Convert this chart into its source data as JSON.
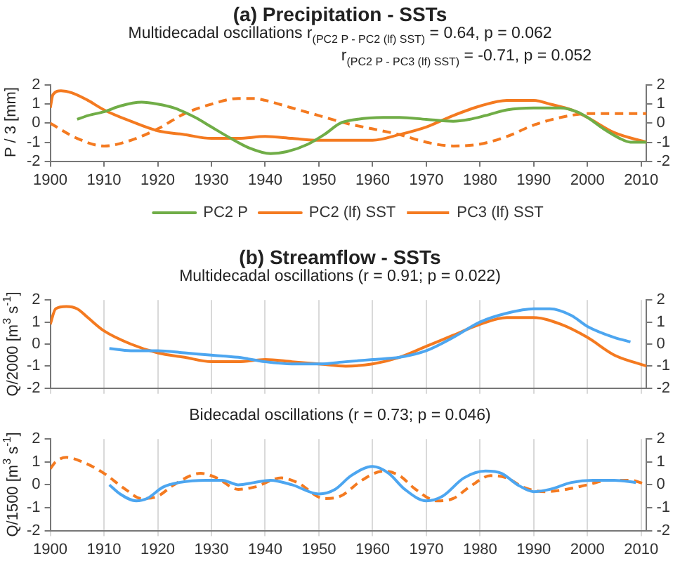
{
  "chart_data": [
    {
      "type": "line",
      "title": "(a)   Precipitation - SSTs",
      "subtitle": "Multidecadal  oscillations   r$_{(PC2 P - PC2 (lf) SST)}$ = 0.64,  p = 0.062",
      "annotations": [
        "r$_{(PC2 P - PC3 (lf) SST)}$ = -0.71, p = 0.052"
      ],
      "ylabel": "P / 3 [mm]",
      "xlim": [
        1900,
        2011
      ],
      "xticks": [
        1900,
        1910,
        1920,
        1930,
        1940,
        1950,
        1960,
        1970,
        1980,
        1990,
        2000,
        2010
      ],
      "ylim": [
        -2,
        2
      ],
      "yticks": [
        -2,
        -1,
        0,
        1,
        2
      ],
      "y2lim": [
        -2,
        2
      ],
      "y2ticks": [
        -2,
        -1,
        0,
        1,
        2
      ],
      "legend": "bottom",
      "line_style": "solid",
      "series": [
        {
          "name": "PC2 P",
          "color": "#70ad47",
          "x": [
            1905,
            1907,
            1910,
            1913,
            1917,
            1920,
            1923,
            1927,
            1930,
            1933,
            1937,
            1941,
            1944,
            1948,
            1951,
            1954,
            1957,
            1962,
            1965,
            1970,
            1975,
            1978,
            1981,
            1985,
            1990,
            1995,
            1998,
            2000,
            2003,
            2006,
            2008,
            2011
          ],
          "values": [
            0.2,
            0.4,
            0.6,
            0.9,
            1.1,
            1.0,
            0.8,
            0.3,
            -0.2,
            -0.7,
            -1.3,
            -1.6,
            -1.5,
            -1.1,
            -0.6,
            0.0,
            0.2,
            0.3,
            0.3,
            0.2,
            0.1,
            0.2,
            0.4,
            0.7,
            0.8,
            0.8,
            0.6,
            0.3,
            -0.3,
            -0.8,
            -1.0,
            -1.0
          ]
        },
        {
          "name": "PC2 (lf) SST",
          "color": "#f47a20",
          "x": [
            1900,
            1900.5,
            1902,
            1904,
            1907,
            1910,
            1915,
            1920,
            1925,
            1930,
            1935,
            1940,
            1945,
            1950,
            1955,
            1960,
            1965,
            1970,
            1975,
            1980,
            1985,
            1990,
            1993,
            1997,
            2000,
            2005,
            2011
          ],
          "values": [
            0.8,
            1.5,
            1.7,
            1.6,
            1.2,
            0.7,
            0.1,
            -0.4,
            -0.6,
            -0.8,
            -0.8,
            -0.7,
            -0.8,
            -0.9,
            -0.9,
            -0.9,
            -0.6,
            -0.2,
            0.4,
            0.9,
            1.2,
            1.2,
            1.0,
            0.7,
            0.3,
            -0.5,
            -1.0
          ]
        },
        {
          "name": "PC3 (lf) SST",
          "color": "#f47a20",
          "line_style": "dashed",
          "x": [
            1900,
            1905,
            1910,
            1915,
            1920,
            1925,
            1930,
            1935,
            1938,
            1940,
            1945,
            1950,
            1955,
            1960,
            1965,
            1970,
            1975,
            1980,
            1985,
            1990,
            1995,
            2000,
            2005,
            2011
          ],
          "values": [
            0.0,
            -0.8,
            -1.2,
            -0.9,
            -0.3,
            0.5,
            1.0,
            1.3,
            1.3,
            1.2,
            0.8,
            0.4,
            0.0,
            -0.3,
            -0.6,
            -1.0,
            -1.2,
            -1.1,
            -0.7,
            -0.1,
            0.3,
            0.5,
            0.5,
            0.5
          ]
        }
      ]
    },
    {
      "type": "line",
      "title": "(b)    Streamflow - SSTs",
      "subtitle": "Multidecadal oscillations  (r = 0.91; p = 0.022)",
      "ylabel": "Q/2000  [m$^{3}$ s$^{-1}$]",
      "xlim": [
        1900,
        2011
      ],
      "xticks": [
        1900,
        1910,
        1920,
        1930,
        1940,
        1950,
        1960,
        1970,
        1980,
        1990,
        2000,
        2010
      ],
      "ylim": [
        -2,
        2
      ],
      "yticks": [
        -2,
        -1,
        0,
        1,
        2
      ],
      "y2lim": [
        -2,
        2
      ],
      "y2ticks": [
        -2,
        -1,
        0,
        1,
        2
      ],
      "grid": "x",
      "tick_labels": "y",
      "line_style": "solid",
      "series": [
        {
          "color": "#4da6f0",
          "x": [
            1911,
            1915,
            1920,
            1925,
            1930,
            1935,
            1940,
            1945,
            1950,
            1955,
            1960,
            1965,
            1970,
            1975,
            1980,
            1985,
            1990,
            1993,
            1997,
            2000,
            2005,
            2008
          ],
          "values": [
            -0.2,
            -0.3,
            -0.3,
            -0.4,
            -0.5,
            -0.6,
            -0.8,
            -0.9,
            -0.9,
            -0.8,
            -0.7,
            -0.6,
            -0.3,
            0.3,
            1.0,
            1.4,
            1.6,
            1.6,
            1.3,
            0.8,
            0.3,
            0.1
          ]
        },
        {
          "color": "#f47a20",
          "x": [
            1900,
            1901,
            1903,
            1905,
            1907,
            1910,
            1915,
            1920,
            1925,
            1930,
            1935,
            1940,
            1945,
            1950,
            1955,
            1960,
            1965,
            1970,
            1975,
            1980,
            1985,
            1990,
            1995,
            2000,
            2005,
            2011
          ],
          "values": [
            0.9,
            1.6,
            1.7,
            1.6,
            1.2,
            0.6,
            0.0,
            -0.4,
            -0.6,
            -0.8,
            -0.8,
            -0.7,
            -0.8,
            -0.9,
            -1.0,
            -0.9,
            -0.6,
            -0.1,
            0.4,
            0.9,
            1.2,
            1.2,
            0.9,
            0.3,
            -0.5,
            -1.0
          ]
        }
      ]
    },
    {
      "type": "line",
      "title": "Bidecadal oscillations  (r = 0.73; p = 0.046)",
      "ylabel": "Q/1500  [m$^{3}$ s$^{-1}$]",
      "xlim": [
        1900,
        2011
      ],
      "xticks": [
        1900,
        1910,
        1920,
        1930,
        1940,
        1950,
        1960,
        1970,
        1980,
        1990,
        2000,
        2010
      ],
      "ylim": [
        -2,
        2
      ],
      "yticks": [
        -2,
        -1,
        0,
        1,
        2
      ],
      "y2lim": [
        -2,
        2
      ],
      "y2ticks": [
        -2,
        -1,
        0,
        1,
        2
      ],
      "grid": "x",
      "line_style": "solid",
      "series": [
        {
          "color": "#4da6f0",
          "x": [
            1911,
            1913,
            1916,
            1918,
            1921,
            1924,
            1929,
            1932,
            1935,
            1938,
            1941,
            1945,
            1950,
            1953,
            1956,
            1960,
            1963,
            1966,
            1970,
            1973,
            1977,
            1981,
            1984,
            1987,
            1990,
            1993,
            1997,
            2001,
            2005,
            2009
          ],
          "values": [
            0.0,
            -0.4,
            -0.7,
            -0.6,
            -0.1,
            0.1,
            0.2,
            0.2,
            0.0,
            0.1,
            0.2,
            0.0,
            -0.4,
            -0.2,
            0.4,
            0.8,
            0.5,
            -0.2,
            -0.7,
            -0.5,
            0.3,
            0.6,
            0.5,
            0.0,
            -0.3,
            -0.2,
            0.1,
            0.2,
            0.2,
            0.1
          ]
        },
        {
          "color": "#f47a20",
          "line_style": "dashed",
          "x": [
            1900,
            1901,
            1903,
            1906,
            1910,
            1914,
            1917,
            1920,
            1923,
            1928,
            1931,
            1935,
            1938,
            1943,
            1946,
            1951,
            1954,
            1958,
            1962,
            1965,
            1968,
            1972,
            1975,
            1978,
            1982,
            1985,
            1988,
            1992,
            1996,
            2000,
            2004,
            2008,
            2011
          ],
          "values": [
            0.7,
            1.0,
            1.2,
            1.0,
            0.5,
            -0.2,
            -0.6,
            -0.5,
            0.0,
            0.5,
            0.3,
            -0.2,
            -0.1,
            0.3,
            0.1,
            -0.6,
            -0.5,
            0.2,
            0.6,
            0.4,
            -0.2,
            -0.7,
            -0.6,
            -0.1,
            0.4,
            0.3,
            -0.1,
            -0.3,
            -0.2,
            0.0,
            0.2,
            0.2,
            0.0
          ]
        }
      ]
    }
  ]
}
